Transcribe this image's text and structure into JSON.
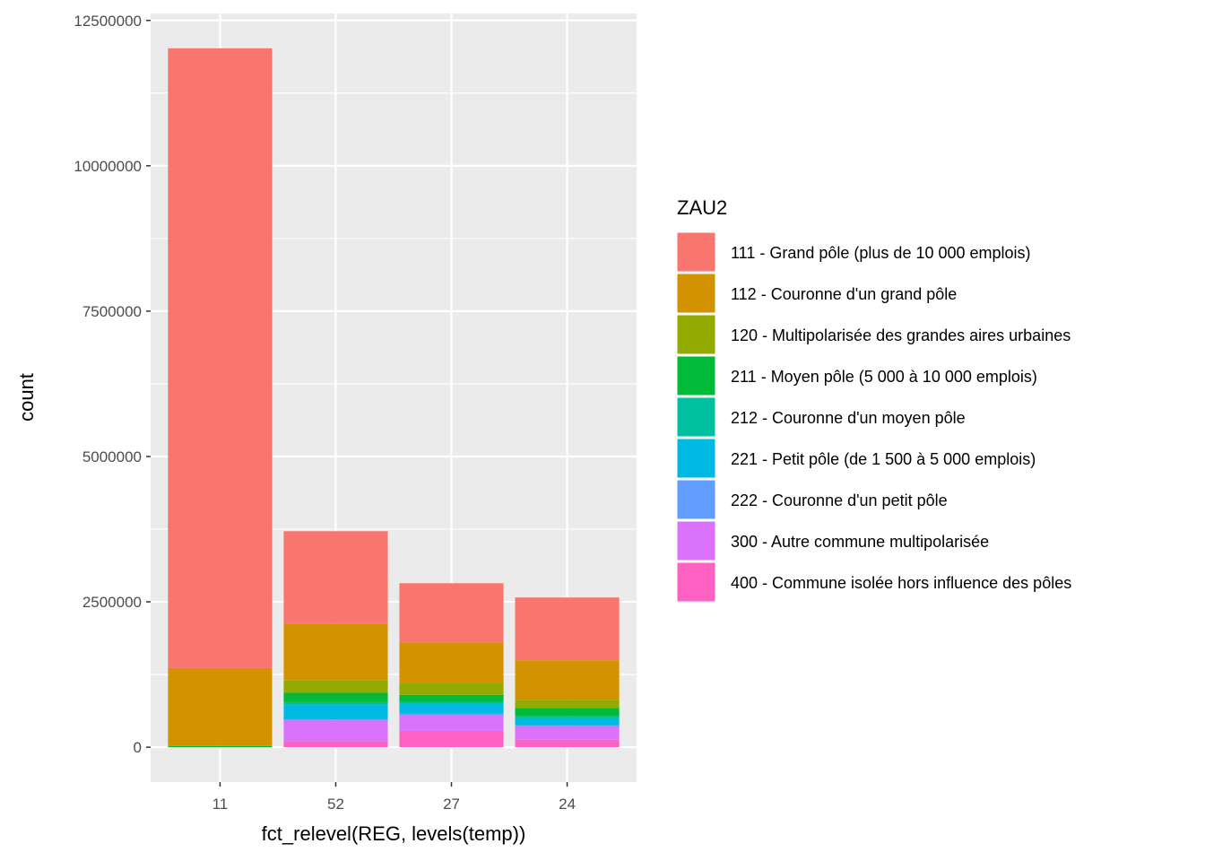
{
  "chart_data": {
    "type": "bar",
    "stacked": true,
    "xlabel": "fct_relevel(REG, levels(temp))",
    "ylabel": "count",
    "categories": [
      "11",
      "52",
      "27",
      "24"
    ],
    "ylim": [
      -600000,
      12620000
    ],
    "yticks": [
      0,
      2500000,
      5000000,
      7500000,
      10000000,
      12500000
    ],
    "ytick_labels": [
      "0",
      "2500000",
      "5000000",
      "7500000",
      "10000000",
      "12500000"
    ],
    "grid": true,
    "legend": {
      "title": "ZAU2",
      "placement": "right"
    },
    "series": [
      {
        "name": "111 - Grand pôle (plus de 10 000 emplois)",
        "color": "#F8766D",
        "values": [
          10660000,
          1590000,
          1020000,
          1080000
        ]
      },
      {
        "name": "112 - Couronne d'un grand pôle",
        "color": "#D39200",
        "values": [
          1340000,
          970000,
          690000,
          680000
        ]
      },
      {
        "name": "120 - Multipolarisée des grandes aires urbaines",
        "color": "#93AA00",
        "values": [
          0,
          220000,
          210000,
          140000
        ]
      },
      {
        "name": "211 - Moyen pôle (5 000 à 10 000 emplois)",
        "color": "#00BA38",
        "values": [
          20000,
          160000,
          120000,
          140000
        ]
      },
      {
        "name": "212 - Couronne d'un moyen pôle",
        "color": "#00C19F",
        "values": [
          0,
          50000,
          30000,
          40000
        ]
      },
      {
        "name": "221 - Petit pôle (de 1 500 à 5 000 emplois)",
        "color": "#00B9E3",
        "values": [
          0,
          250000,
          170000,
          120000
        ]
      },
      {
        "name": "222 - Couronne d'un petit pôle",
        "color": "#619CFF",
        "values": [
          0,
          5000,
          30000,
          5000
        ]
      },
      {
        "name": "300 - Autre commune multipolarisée",
        "color": "#DB72FB",
        "values": [
          0,
          370000,
          270000,
          240000
        ]
      },
      {
        "name": "400 - Commune isolée hors influence des pôles",
        "color": "#FF61C3",
        "values": [
          0,
          100000,
          280000,
          130000
        ]
      }
    ]
  }
}
